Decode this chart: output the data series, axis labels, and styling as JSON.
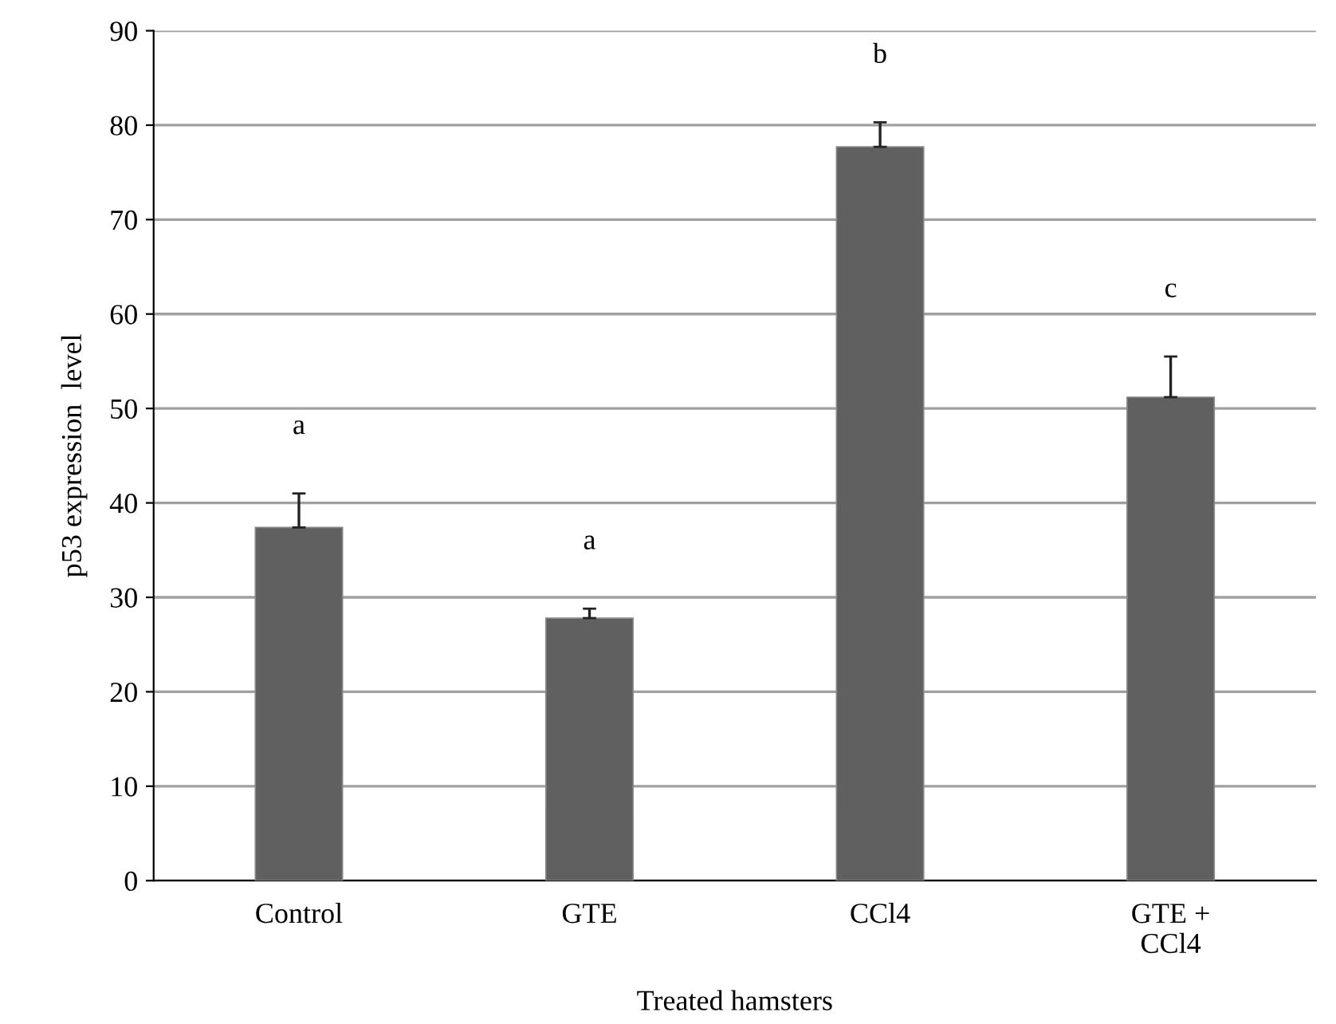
{
  "chart_data": {
    "type": "bar",
    "xlabel": "Treated hamsters",
    "ylabel": "p53 expression  level",
    "categories": [
      "Control",
      "GTE",
      "CCl4",
      "GTE +\nCCl4"
    ],
    "values": [
      37.4,
      27.8,
      77.7,
      51.2
    ],
    "errors": [
      3.6,
      1.0,
      2.6,
      4.3
    ],
    "color": "#606060",
    "ylim": [
      0,
      90
    ],
    "yticks": [
      0,
      10,
      20,
      30,
      40,
      50,
      60,
      70,
      80,
      90
    ],
    "grid": "y",
    "annotations": [
      "a",
      "a",
      "b",
      "c"
    ]
  }
}
